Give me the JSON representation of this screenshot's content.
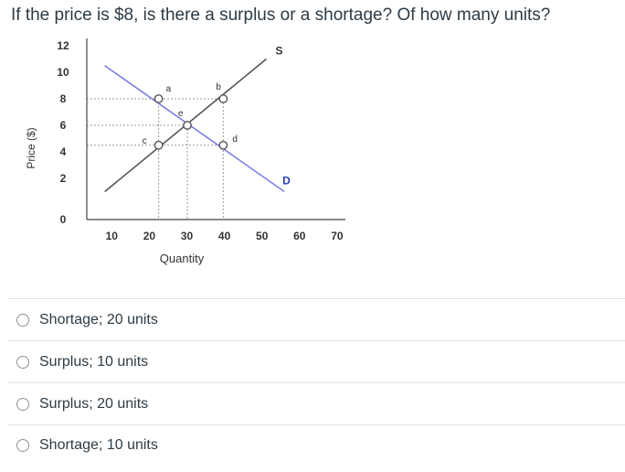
{
  "question": "If the price is $8, is there a surplus or a shortage? Of how many units?",
  "chart_data": {
    "type": "line",
    "xlabel": "Quantity",
    "ylabel": "Price ($)",
    "x_ticks": [
      10,
      20,
      30,
      40,
      50,
      60,
      70
    ],
    "y_ticks": [
      0,
      2,
      4,
      6,
      8,
      10,
      12
    ],
    "xlim": [
      0,
      70
    ],
    "ylim": [
      0,
      12
    ],
    "series": [
      {
        "name": "S",
        "points": [
          [
            5,
            1
          ],
          [
            50,
            11
          ]
        ],
        "color": "#555555"
      },
      {
        "name": "D",
        "points": [
          [
            5,
            10.5
          ],
          [
            55,
            1
          ]
        ],
        "color": "#7b7fe0"
      }
    ],
    "points": [
      {
        "label": "a",
        "x": 20,
        "y": 8
      },
      {
        "label": "b",
        "x": 38,
        "y": 8
      },
      {
        "label": "c",
        "x": 20,
        "y": 4.5
      },
      {
        "label": "d",
        "x": 38,
        "y": 4.5
      },
      {
        "label": "e",
        "x": 28,
        "y": 6
      }
    ]
  },
  "answers": [
    {
      "label": "Shortage; 20 units"
    },
    {
      "label": "Surplus; 10 units"
    },
    {
      "label": "Surplus; 20 units"
    },
    {
      "label": "Shortage; 10 units"
    }
  ]
}
